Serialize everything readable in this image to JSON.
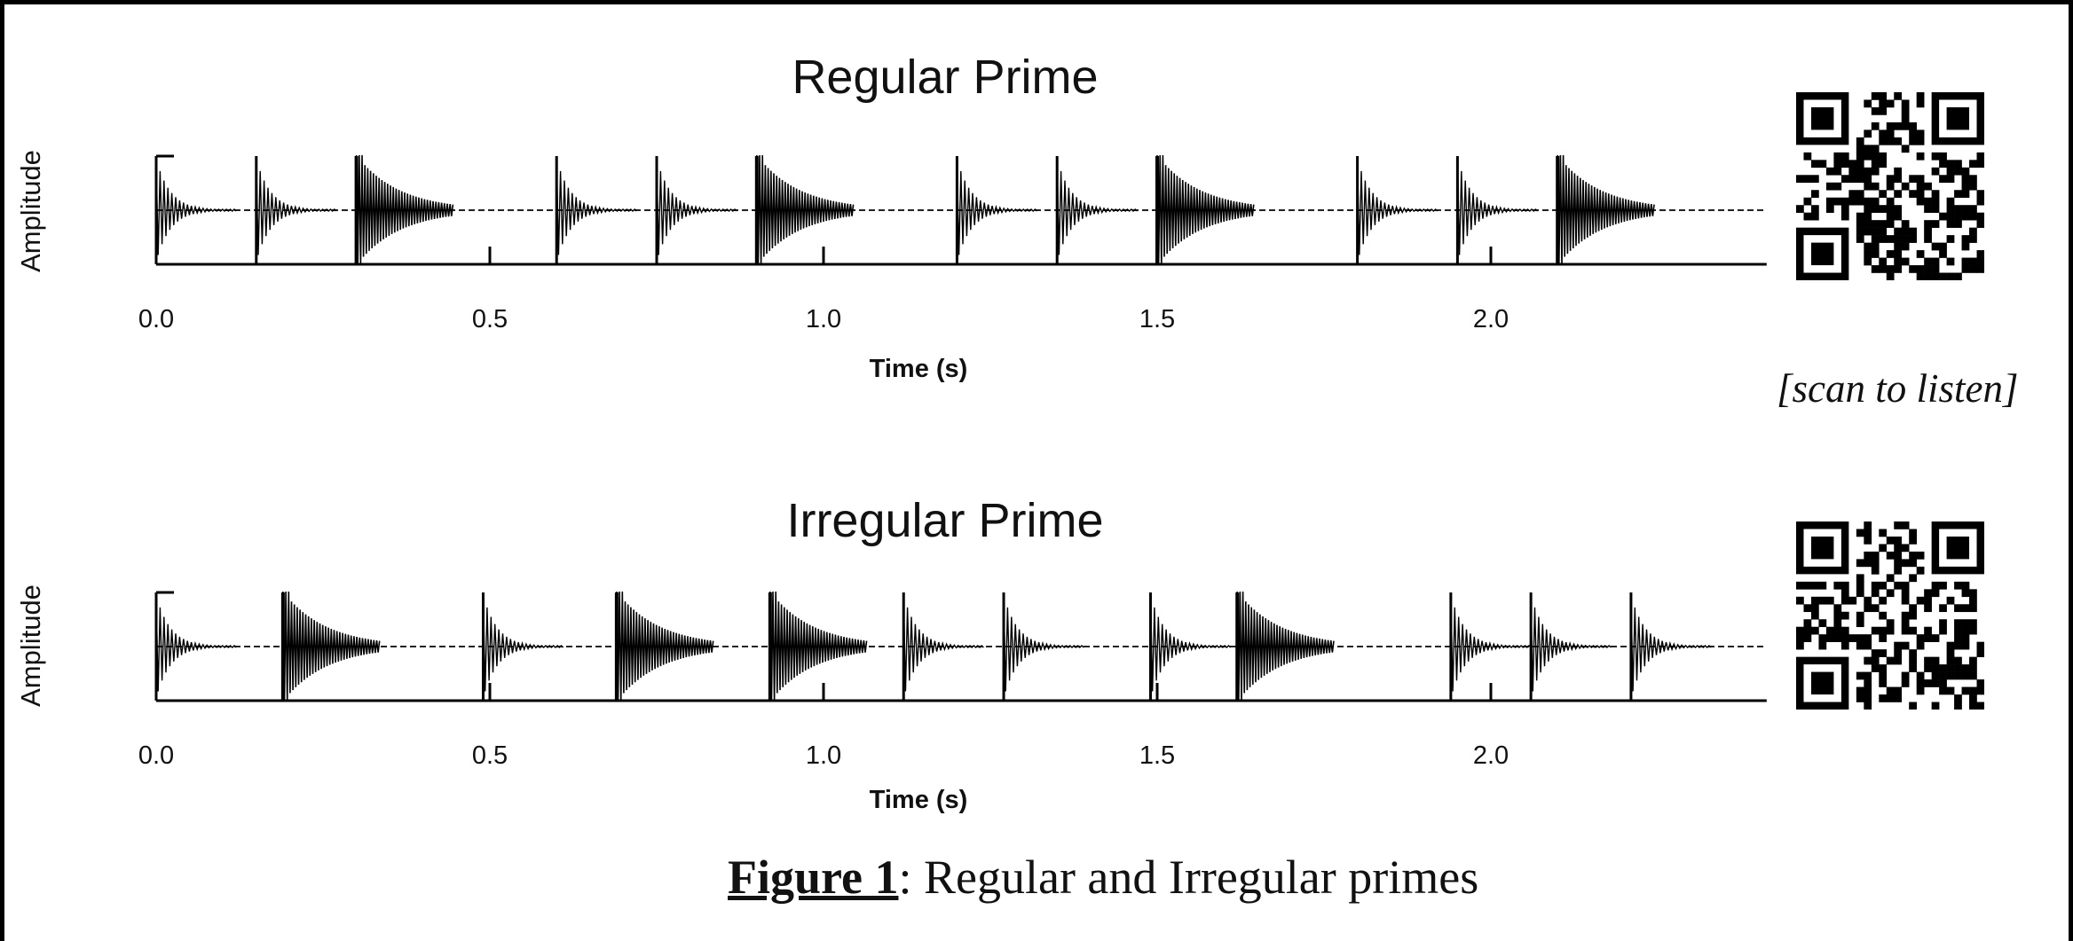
{
  "chart_data": [
    {
      "type": "line",
      "title": "Regular Prime",
      "xlabel": "Time (s)",
      "ylabel": "Amplitude",
      "xlim": [
        0,
        2.4
      ],
      "xticks": [
        "0.0",
        "0.5",
        "1.0",
        "1.5",
        "2.0"
      ],
      "xtick_values": [
        0.0,
        0.5,
        1.0,
        1.5,
        2.0
      ],
      "grid": false,
      "baseline": "dashed",
      "series": [
        {
          "onsets": [
            0.0,
            0.15,
            0.3,
            0.6,
            0.75,
            0.9,
            1.2,
            1.35,
            1.5,
            1.8,
            1.95,
            2.1
          ],
          "strong": [
            false,
            false,
            true,
            false,
            false,
            true,
            false,
            false,
            true,
            false,
            false,
            true
          ]
        }
      ]
    },
    {
      "type": "line",
      "title": "Irregular Prime",
      "xlabel": "Time (s)",
      "ylabel": "Amplitude",
      "xlim": [
        0,
        2.4
      ],
      "xticks": [
        "0.0",
        "0.5",
        "1.0",
        "1.5",
        "2.0"
      ],
      "xtick_values": [
        0.0,
        0.5,
        1.0,
        1.5,
        2.0
      ],
      "grid": false,
      "baseline": "dashed",
      "series": [
        {
          "onsets": [
            0.0,
            0.19,
            0.49,
            0.69,
            0.92,
            1.12,
            1.27,
            1.49,
            1.62,
            1.94,
            2.06,
            2.21
          ],
          "strong": [
            false,
            true,
            false,
            true,
            true,
            false,
            false,
            false,
            true,
            false,
            false,
            false
          ]
        }
      ]
    }
  ],
  "qr_codes": [
    "qr-code-regular",
    "qr-code-irregular"
  ],
  "scan_caption": "[scan to listen]",
  "figure_caption": {
    "label": "Figure 1",
    "text": ": Regular and Irregular primes"
  },
  "colors": {
    "ink": "#000000",
    "background": "#ffffff"
  }
}
